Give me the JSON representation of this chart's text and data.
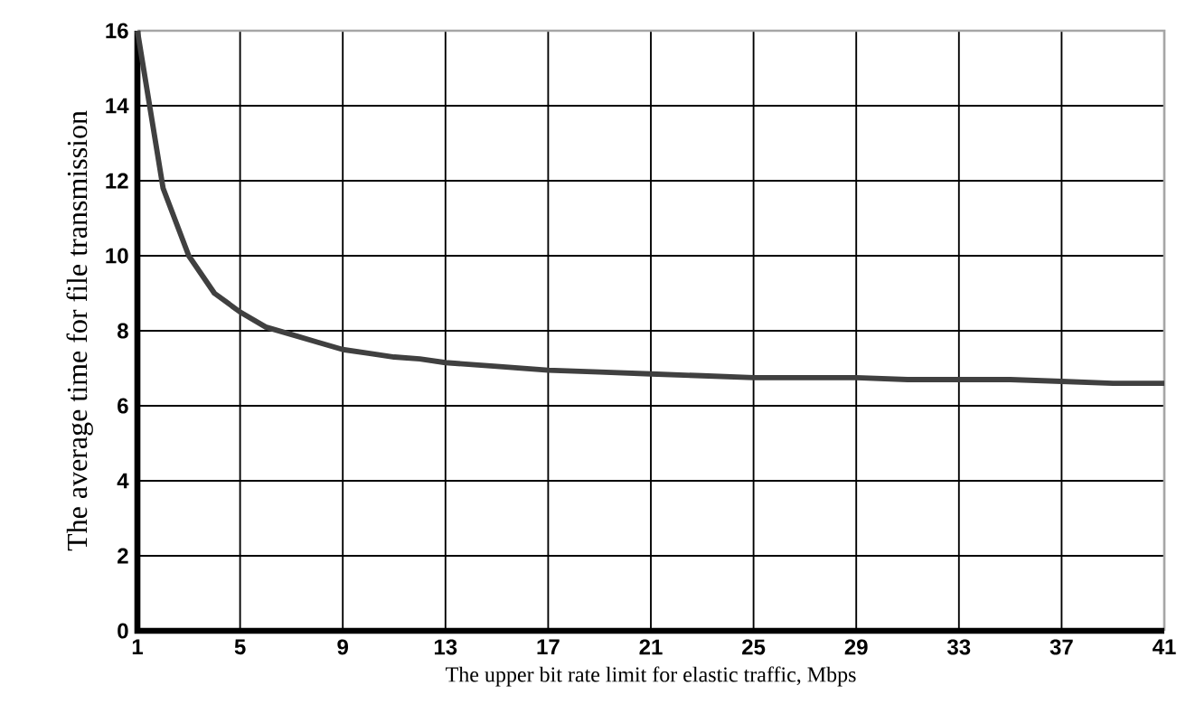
{
  "chart_data": {
    "type": "line",
    "xlabel": "The upper bit rate limit for elastic traffic, Mbps",
    "ylabel": "The average time for file transmission",
    "x": [
      1,
      2,
      3,
      4,
      5,
      6,
      7,
      8,
      9,
      10,
      11,
      12,
      13,
      15,
      17,
      19,
      21,
      23,
      25,
      29,
      31,
      35,
      37,
      39,
      41
    ],
    "series": [
      {
        "color": "#404040",
        "values": [
          16,
          11.8,
          10,
          9.0,
          8.5,
          8.1,
          7.9,
          7.7,
          7.5,
          7.4,
          7.3,
          7.25,
          7.15,
          7.05,
          6.95,
          6.9,
          6.85,
          6.8,
          6.75,
          6.75,
          6.7,
          6.7,
          6.65,
          6.6,
          6.6
        ]
      }
    ],
    "xlim": [
      1,
      41
    ],
    "ylim": [
      0,
      16
    ],
    "xticks": [
      1,
      5,
      9,
      13,
      17,
      21,
      25,
      29,
      33,
      37,
      41
    ],
    "yticks": [
      0,
      2,
      4,
      6,
      8,
      10,
      12,
      14,
      16
    ],
    "grid": true,
    "marker": "none",
    "line_style": "solid"
  }
}
